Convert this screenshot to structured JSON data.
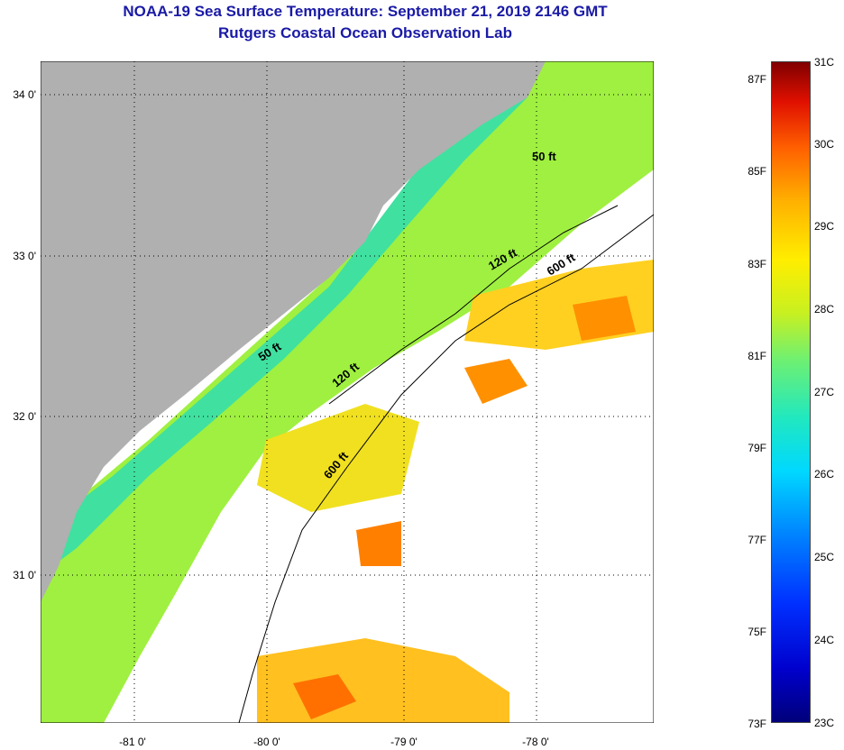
{
  "title": {
    "line1": "NOAA-19 Sea Surface Temperature:  September 21, 2019 2146 GMT",
    "line2": "Rutgers Coastal Ocean Observation Lab"
  },
  "map": {
    "lat_labels": [
      "34 0'",
      "33 0'",
      "32 0'",
      "31 0'"
    ],
    "lon_labels": [
      "-81 0'",
      "-80 0'",
      "-79 0'",
      "-78 0'"
    ],
    "contour_labels": [
      "50 ft",
      "120 ft",
      "600 ft",
      "50 ft",
      "120 ft",
      "600 ft"
    ],
    "colors": {
      "land": "#b0b0b0",
      "cloud": "#ffffff",
      "nearshore": "#60e070",
      "shelf": "#b0f040",
      "warm": "#ffd020",
      "hot": "#ff8000"
    }
  },
  "colorbar": {
    "fahrenheit_labels": [
      "87F",
      "85F",
      "83F",
      "81F",
      "79F",
      "77F",
      "75F",
      "73F"
    ],
    "celsius_labels": [
      "31C",
      "30C",
      "29C",
      "28C",
      "27C",
      "26C",
      "25C",
      "24C",
      "23C"
    ]
  }
}
